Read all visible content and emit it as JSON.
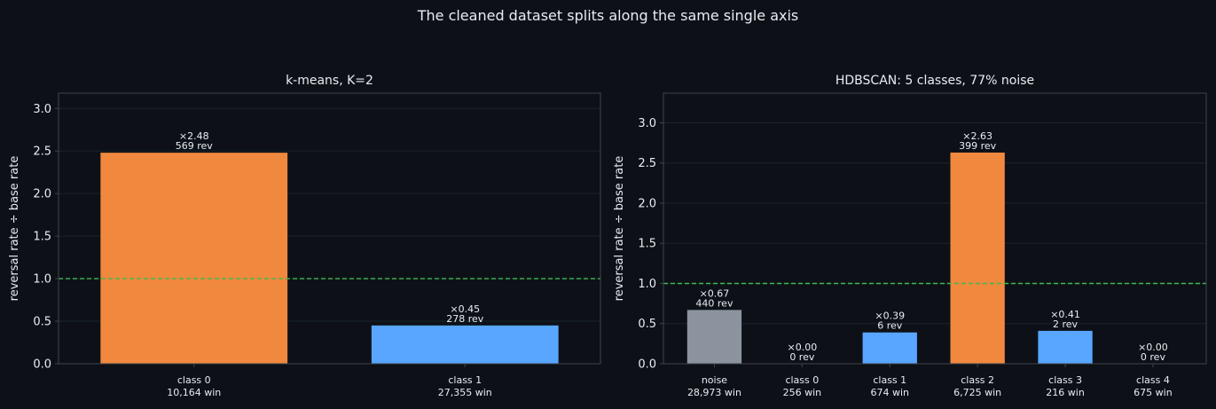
{
  "suptitle": "The cleaned dataset splits along the same single axis",
  "colors": {
    "background": "#0d1117",
    "spine": "#3d444d",
    "grid": "#1c222b",
    "text": "#e6edf3",
    "reference_line": "#3fb950",
    "orange": "#f0883e",
    "blue": "#58a6ff",
    "gray": "#8b949e"
  },
  "chart_data": [
    {
      "type": "bar",
      "title": "k-means, K=2",
      "ylabel": "reversal rate ÷ base rate",
      "xlabel": "",
      "ylim": [
        0,
        3.18
      ],
      "yticks": [
        "0.0",
        "0.5",
        "1.0",
        "1.5",
        "2.0",
        "2.5",
        "3.0"
      ],
      "reference_line": 1.0,
      "grid": true,
      "categories": [
        "class 0",
        "class 1"
      ],
      "category_sublabels": [
        "10,164 win",
        "27,355 win"
      ],
      "values": [
        2.48,
        0.45
      ],
      "value_labels": [
        "×2.48",
        "×0.45"
      ],
      "count_labels": [
        "569 rev",
        "278 rev"
      ],
      "bar_colors": [
        "#f0883e",
        "#58a6ff"
      ]
    },
    {
      "type": "bar",
      "title": "HDBSCAN: 5 classes, 77% noise",
      "ylabel": "reversal rate ÷ base rate",
      "xlabel": "",
      "ylim": [
        0,
        3.37
      ],
      "yticks": [
        "0.0",
        "0.5",
        "1.0",
        "1.5",
        "2.0",
        "2.5",
        "3.0"
      ],
      "reference_line": 1.0,
      "grid": true,
      "categories": [
        "noise",
        "class 0",
        "class 1",
        "class 2",
        "class 3",
        "class 4"
      ],
      "category_sublabels": [
        "28,973 win",
        "256 win",
        "674 win",
        "6,725 win",
        "216 win",
        "675 win"
      ],
      "values": [
        0.67,
        0.0,
        0.39,
        2.63,
        0.41,
        0.0
      ],
      "value_labels": [
        "×0.67",
        "×0.00",
        "×0.39",
        "×2.63",
        "×0.41",
        "×0.00"
      ],
      "count_labels": [
        "440 rev",
        "0 rev",
        "6 rev",
        "399 rev",
        "2 rev",
        "0 rev"
      ],
      "bar_colors": [
        "#8b949e",
        "#58a6ff",
        "#58a6ff",
        "#f0883e",
        "#58a6ff",
        "#58a6ff"
      ]
    }
  ]
}
